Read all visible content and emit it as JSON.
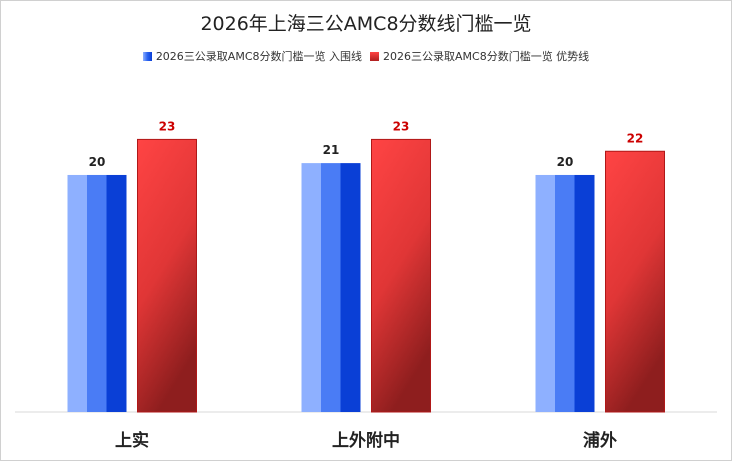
{
  "chart_data": {
    "type": "bar",
    "title": "2026年上海三公AMC8分数线门槛一览",
    "categories": [
      "上实",
      "上外附中",
      "浦外"
    ],
    "series": [
      {
        "name": "2026三公录取AMC8分数门槛一览 入围线",
        "values": [
          20,
          21,
          20
        ],
        "color": "#1f5ae8"
      },
      {
        "name": "2026三公录取AMC8分数门槛一览 优势线",
        "values": [
          23,
          23,
          22
        ],
        "color": "#e03030"
      }
    ],
    "ylim": [
      0,
      27
    ],
    "xlabel": "",
    "ylabel": "",
    "grid": false,
    "legend_position": "top"
  }
}
